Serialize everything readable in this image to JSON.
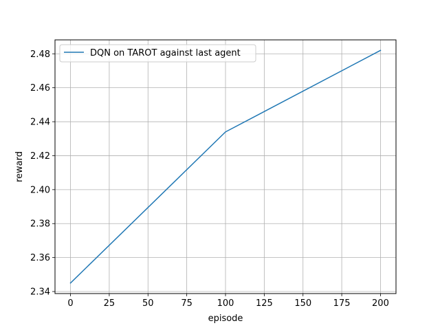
{
  "chart_data": {
    "type": "line",
    "xlabel": "episode",
    "ylabel": "reward",
    "xlim": [
      -10,
      210
    ],
    "ylim": [
      2.3388,
      2.4882
    ],
    "x_ticks": [
      0,
      25,
      50,
      75,
      100,
      125,
      150,
      175,
      200
    ],
    "x_tick_labels": [
      "0",
      "25",
      "50",
      "75",
      "100",
      "125",
      "150",
      "175",
      "200"
    ],
    "y_ticks": [
      2.34,
      2.36,
      2.38,
      2.4,
      2.42,
      2.44,
      2.46,
      2.48
    ],
    "y_tick_labels": [
      "2.34",
      "2.36",
      "2.38",
      "2.40",
      "2.42",
      "2.44",
      "2.46",
      "2.48"
    ],
    "grid": true,
    "legend_position": "upper-left",
    "series": [
      {
        "name": "DQN on TAROT against last agent",
        "color": "#1f77b4",
        "x": [
          0,
          100,
          200
        ],
        "y": [
          2.345,
          2.434,
          2.482
        ]
      }
    ]
  }
}
